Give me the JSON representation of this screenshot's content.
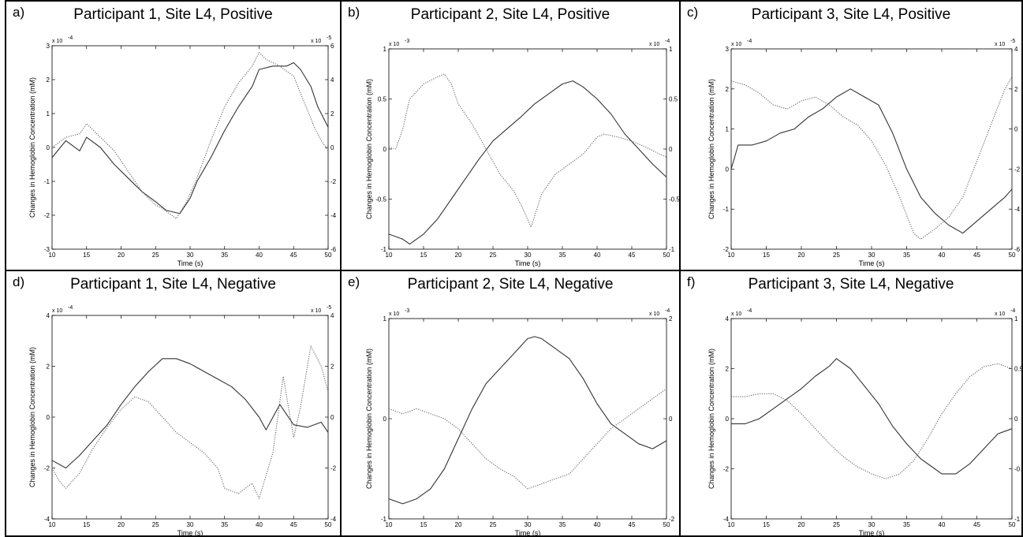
{
  "chart_data": [
    {
      "type": "line",
      "panel_label": "a)",
      "title": "Participant 1, Site L4, Positive",
      "xlabel": "Time (s)",
      "ylabel": "Changes in Hemoglobin Concentration (mM)",
      "ylabel_right": "Changes in Hemoglobin Concentration (mM)",
      "xlim": [
        10,
        50
      ],
      "xticks": [
        10,
        15,
        20,
        25,
        30,
        35,
        40,
        45,
        50
      ],
      "ylim": [
        -3,
        3
      ],
      "yticks": [
        -3,
        -2,
        -1,
        0,
        1,
        2,
        3
      ],
      "y_exponent": "x 10",
      "y_exponent_power": "-4",
      "ylim_right": [
        -6,
        6
      ],
      "yticks_right": [
        -6,
        -4,
        -2,
        0,
        2,
        4,
        6
      ],
      "y_exponent_right": "x 10",
      "y_exponent_power_right": "-5",
      "grid": false,
      "series": [
        {
          "style": "solid",
          "axis": "left",
          "x": [
            10,
            12,
            14,
            15,
            17,
            19,
            21,
            23,
            25,
            26.5,
            28.5,
            30,
            31,
            33,
            35,
            37,
            39,
            40,
            42,
            44,
            45,
            46,
            47.5,
            48.5,
            50
          ],
          "y": [
            -0.3,
            0.2,
            -0.1,
            0.3,
            0.0,
            -0.5,
            -0.9,
            -1.3,
            -1.6,
            -1.85,
            -1.95,
            -1.5,
            -1.0,
            -0.3,
            0.5,
            1.2,
            1.8,
            2.3,
            2.4,
            2.4,
            2.5,
            2.3,
            1.8,
            1.2,
            0.6
          ]
        },
        {
          "style": "dotted",
          "axis": "right",
          "x": [
            10,
            12,
            14,
            15,
            17,
            19,
            21,
            23,
            25,
            26,
            28,
            29.5,
            31,
            33,
            35,
            37,
            39,
            40,
            41,
            43,
            45,
            46,
            48,
            49,
            50
          ],
          "y": [
            0.0,
            0.6,
            0.8,
            1.4,
            0.6,
            -0.2,
            -1.4,
            -2.6,
            -3.4,
            -3.6,
            -4.2,
            -3.2,
            -1.8,
            0.4,
            2.4,
            3.8,
            4.8,
            5.6,
            5.2,
            4.8,
            4.2,
            3.2,
            1.2,
            0.4,
            -0.2
          ]
        }
      ]
    },
    {
      "type": "line",
      "panel_label": "b)",
      "title": "Participant 2, Site L4, Positive",
      "xlabel": "Time (s)",
      "ylabel": "Changes in Hemoglobin Concentration (mM)",
      "ylabel_right": "Changes in Hemoglobin Concentration (mM)",
      "xlim": [
        10,
        50
      ],
      "xticks": [
        10,
        15,
        20,
        25,
        30,
        35,
        40,
        45,
        50
      ],
      "ylim": [
        -1,
        1
      ],
      "yticks": [
        -1,
        -0.5,
        0,
        0.5,
        1
      ],
      "y_exponent": "x 10",
      "y_exponent_power": "-3",
      "ylim_right": [
        -1,
        1
      ],
      "yticks_right": [
        -1,
        -0.5,
        0,
        0.5,
        1
      ],
      "y_exponent_right": "x 10",
      "y_exponent_power_right": "-4",
      "grid": false,
      "series": [
        {
          "style": "solid",
          "axis": "left",
          "x": [
            10,
            12,
            13,
            15,
            17,
            19,
            21,
            23,
            25,
            27,
            29,
            31,
            33,
            35,
            36.5,
            38,
            40,
            42,
            44,
            46,
            48,
            50
          ],
          "y": [
            -0.85,
            -0.9,
            -0.95,
            -0.85,
            -0.7,
            -0.5,
            -0.3,
            -0.1,
            0.08,
            0.2,
            0.32,
            0.45,
            0.55,
            0.65,
            0.68,
            0.62,
            0.5,
            0.35,
            0.15,
            0.0,
            -0.15,
            -0.28
          ]
        },
        {
          "style": "dotted",
          "axis": "right",
          "x": [
            10,
            11,
            12,
            13,
            15,
            17,
            18,
            19,
            20,
            22,
            24,
            26,
            28,
            29,
            30.5,
            32,
            34,
            36,
            38,
            40,
            41,
            43,
            45,
            47,
            49,
            50
          ],
          "y": [
            0.02,
            0.0,
            0.2,
            0.5,
            0.65,
            0.72,
            0.75,
            0.65,
            0.45,
            0.25,
            0.0,
            -0.25,
            -0.42,
            -0.55,
            -0.78,
            -0.45,
            -0.25,
            -0.15,
            -0.05,
            0.12,
            0.15,
            0.12,
            0.08,
            0.02,
            -0.05,
            -0.08
          ]
        }
      ]
    },
    {
      "type": "line",
      "panel_label": "c)",
      "title": "Participant 3, Site L4, Positive",
      "xlabel": "Time (s)",
      "ylabel": "Changes in Hemoglobin Concentration (mM)",
      "ylabel_right": "Changes in Hemoglobin Concentration (mM)",
      "xlim": [
        10,
        50
      ],
      "xticks": [
        10,
        15,
        20,
        25,
        30,
        35,
        40,
        45,
        50
      ],
      "ylim": [
        -2,
        3
      ],
      "yticks": [
        -2,
        -1,
        0,
        1,
        2,
        3
      ],
      "y_exponent": "x 10",
      "y_exponent_power": "-4",
      "ylim_right": [
        -6,
        4
      ],
      "yticks_right": [
        -6,
        -4,
        -2,
        0,
        2,
        4
      ],
      "y_exponent_right": "x 10",
      "y_exponent_power_right": "-5",
      "grid": false,
      "series": [
        {
          "style": "solid",
          "axis": "left",
          "x": [
            10,
            11,
            13,
            15,
            17,
            19,
            21,
            23,
            25,
            27,
            29,
            31,
            33,
            35,
            37,
            39,
            41,
            43,
            45,
            47,
            49,
            50
          ],
          "y": [
            0.0,
            0.6,
            0.6,
            0.7,
            0.9,
            1.0,
            1.3,
            1.5,
            1.8,
            2.0,
            1.8,
            1.6,
            0.9,
            0.0,
            -0.7,
            -1.1,
            -1.4,
            -1.6,
            -1.3,
            -1.0,
            -0.7,
            -0.5
          ]
        },
        {
          "style": "dotted",
          "axis": "right",
          "x": [
            10,
            12,
            14,
            16,
            18,
            20,
            22,
            24,
            26,
            28,
            30,
            32,
            34,
            36,
            37,
            39,
            41,
            43,
            45,
            47,
            49,
            50
          ],
          "y": [
            2.4,
            2.2,
            1.8,
            1.2,
            1.0,
            1.4,
            1.6,
            1.2,
            0.6,
            0.2,
            -0.6,
            -1.8,
            -3.4,
            -5.2,
            -5.5,
            -5.0,
            -4.4,
            -3.4,
            -1.6,
            0.2,
            2.0,
            2.6
          ]
        }
      ]
    },
    {
      "type": "line",
      "panel_label": "d)",
      "title": "Participant 1, Site L4, Negative",
      "xlabel": "Time (s)",
      "ylabel": "Changes in Hemoglobin Concentration (mM)",
      "ylabel_right": "Changes in Hemoglobin Concentration (mM)",
      "xlim": [
        10,
        50
      ],
      "xticks": [
        10,
        15,
        20,
        25,
        30,
        35,
        40,
        45,
        50
      ],
      "ylim": [
        -4,
        4
      ],
      "yticks": [
        -4,
        -2,
        0,
        2,
        4
      ],
      "y_exponent": "x 10",
      "y_exponent_power": "-4",
      "ylim_right": [
        -4,
        4
      ],
      "yticks_right": [
        -4,
        -2,
        0,
        2,
        4
      ],
      "y_exponent_right": "x 10",
      "y_exponent_power_right": "-5",
      "grid": false,
      "series": [
        {
          "style": "solid",
          "axis": "left",
          "x": [
            10,
            12,
            14,
            16,
            18,
            20,
            22,
            24,
            26,
            28,
            30,
            32,
            34,
            36,
            38,
            40,
            41,
            43,
            45,
            47,
            49,
            50
          ],
          "y": [
            -1.7,
            -2.0,
            -1.5,
            -0.9,
            -0.3,
            0.5,
            1.2,
            1.8,
            2.3,
            2.3,
            2.1,
            1.8,
            1.5,
            1.2,
            0.7,
            0.0,
            -0.5,
            0.5,
            -0.3,
            -0.4,
            -0.2,
            -0.6
          ]
        },
        {
          "style": "dotted",
          "axis": "right",
          "x": [
            10,
            11,
            12,
            14,
            16,
            18,
            20,
            22,
            24,
            26,
            28,
            30,
            32,
            34,
            35,
            37,
            39,
            40,
            42,
            43.5,
            45,
            46,
            47.5,
            49,
            50
          ],
          "y": [
            -2.0,
            -2.5,
            -2.8,
            -2.2,
            -1.2,
            -0.4,
            0.3,
            0.8,
            0.6,
            0.0,
            -0.6,
            -1.0,
            -1.4,
            -2.0,
            -2.8,
            -3.0,
            -2.6,
            -3.2,
            -1.4,
            1.6,
            -0.8,
            0.4,
            2.8,
            2.0,
            1.0
          ]
        }
      ]
    },
    {
      "type": "line",
      "panel_label": "e)",
      "title": "Participant 2, Site L4, Negative",
      "xlabel": "Time (s)",
      "ylabel": "Changes in Hemoglobin Concentration (mM)",
      "ylabel_right": "Changes in Hemoglobin Concentration (mM)",
      "xlim": [
        10,
        50
      ],
      "xticks": [
        10,
        15,
        20,
        25,
        30,
        35,
        40,
        45,
        50
      ],
      "ylim": [
        -1,
        1
      ],
      "yticks": [
        -1,
        0,
        1
      ],
      "y_exponent": "x 10",
      "y_exponent_power": "-3",
      "ylim_right": [
        -2,
        2
      ],
      "yticks_right": [
        -2,
        0,
        2
      ],
      "y_exponent_right": "x 10",
      "y_exponent_power_right": "-4",
      "grid": false,
      "series": [
        {
          "style": "solid",
          "axis": "left",
          "x": [
            10,
            12,
            14,
            16,
            18,
            20,
            22,
            24,
            26,
            28,
            30,
            31,
            32,
            34,
            36,
            38,
            40,
            42,
            44,
            46,
            48,
            50
          ],
          "y": [
            -0.8,
            -0.85,
            -0.8,
            -0.7,
            -0.5,
            -0.2,
            0.1,
            0.35,
            0.5,
            0.65,
            0.8,
            0.82,
            0.8,
            0.7,
            0.6,
            0.4,
            0.15,
            -0.05,
            -0.15,
            -0.25,
            -0.3,
            -0.22
          ]
        },
        {
          "style": "dotted",
          "axis": "right",
          "x": [
            10,
            12,
            14,
            16,
            18,
            20,
            22,
            24,
            26,
            28,
            30,
            32,
            34,
            36,
            38,
            40,
            42,
            44,
            46,
            48,
            50
          ],
          "y": [
            0.2,
            0.1,
            0.2,
            0.1,
            0.0,
            -0.2,
            -0.5,
            -0.8,
            -1.0,
            -1.15,
            -1.4,
            -1.3,
            -1.2,
            -1.1,
            -0.8,
            -0.5,
            -0.2,
            0.0,
            0.2,
            0.4,
            0.6
          ]
        }
      ]
    },
    {
      "type": "line",
      "panel_label": "f)",
      "title": "Participant 3, Site L4, Negative",
      "xlabel": "Time (s)",
      "ylabel": "Changes in Hemoglobin Concentration (mM)",
      "ylabel_right": "Changes in Hemoglobin Concentration (mM)",
      "xlim": [
        10,
        50
      ],
      "xticks": [
        10,
        15,
        20,
        25,
        30,
        35,
        40,
        45,
        50
      ],
      "ylim": [
        -4,
        4
      ],
      "yticks": [
        -4,
        -2,
        0,
        2,
        4
      ],
      "y_exponent": "x 10",
      "y_exponent_power": "-4",
      "ylim_right": [
        -1,
        1
      ],
      "yticks_right": [
        -1,
        -0.5,
        0,
        0.5,
        1
      ],
      "y_exponent_right": "x 10",
      "y_exponent_power_right": "-4",
      "grid": false,
      "series": [
        {
          "style": "solid",
          "axis": "left",
          "x": [
            10,
            12,
            14,
            16,
            18,
            20,
            22,
            24,
            25,
            27,
            29,
            31,
            33,
            35,
            37,
            39,
            40,
            42,
            44,
            46,
            48,
            50
          ],
          "y": [
            -0.2,
            -0.2,
            0.0,
            0.4,
            0.8,
            1.2,
            1.7,
            2.1,
            2.4,
            2.0,
            1.3,
            0.6,
            -0.3,
            -1.0,
            -1.6,
            -2.0,
            -2.2,
            -2.2,
            -1.8,
            -1.2,
            -0.6,
            -0.4
          ]
        },
        {
          "style": "dotted",
          "axis": "right",
          "x": [
            10,
            12,
            14,
            16,
            18,
            20,
            22,
            24,
            26,
            28,
            30,
            32,
            34,
            36,
            38,
            40,
            42,
            44,
            46,
            48,
            50
          ],
          "y": [
            0.22,
            0.22,
            0.25,
            0.25,
            0.18,
            0.05,
            -0.1,
            -0.25,
            -0.38,
            -0.48,
            -0.55,
            -0.6,
            -0.55,
            -0.42,
            -0.2,
            0.05,
            0.25,
            0.42,
            0.52,
            0.55,
            0.5
          ]
        }
      ]
    }
  ]
}
